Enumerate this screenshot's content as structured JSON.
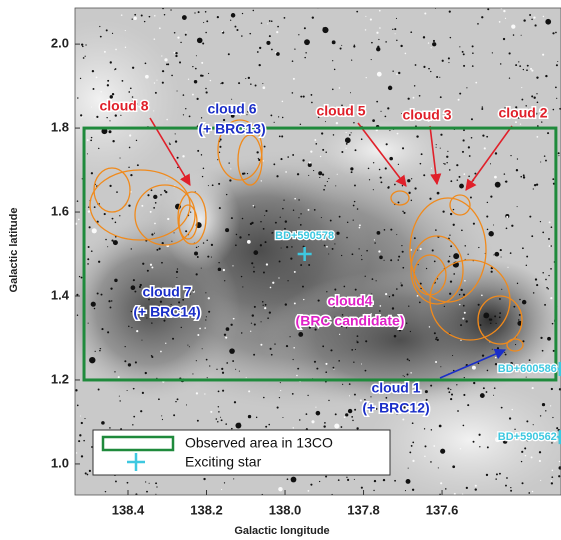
{
  "chart_data": {
    "type": "image",
    "xlabel": "Galactic longitude",
    "ylabel": "Galactic latitude",
    "xlim": [
      138.535,
      137.297
    ],
    "ylim": [
      0.926,
      2.086
    ],
    "xticks": [
      138.4,
      138.2,
      {
        "value": 138,
        "label": "138.0"
      },
      137.8,
      137.6
    ],
    "yticks": [
      {
        "value": 1,
        "label": "1.0"
      },
      1.2,
      1.4,
      1.6,
      1.8,
      {
        "value": 2,
        "label": "2.0"
      }
    ],
    "observed_area": {
      "name": "Observed area in 13CO",
      "color": "#1f8a3c",
      "x": [
        138.512,
        137.31
      ],
      "y": [
        1.2,
        1.8
      ]
    },
    "exciting_stars": {
      "name": "Exciting star",
      "color": "#3ec8e0",
      "labels": [
        "BD+590578",
        "BD+600586",
        "BD+590562"
      ],
      "x": [
        137.95,
        137.3,
        137.3
      ],
      "y": [
        1.5,
        1.226,
        1.064
      ]
    },
    "annotations": [
      {
        "lines": [
          "cloud 8"
        ],
        "color": "#e0202a"
      },
      {
        "lines": [
          "cloud 6",
          "(+ BRC13)"
        ],
        "color": "#1a2ec8"
      },
      {
        "lines": [
          "cloud 5"
        ],
        "color": "#e0202a"
      },
      {
        "lines": [
          "cloud 3"
        ],
        "color": "#e0202a"
      },
      {
        "lines": [
          "cloud 2"
        ],
        "color": "#e0202a"
      },
      {
        "lines": [
          "cloud 7",
          "(+ BRC14)"
        ],
        "color": "#1a2ec8"
      },
      {
        "lines": [
          "cloud4",
          "(BRC candidate)"
        ],
        "color": "#e020c8"
      },
      {
        "lines": [
          "cloud 1",
          "(+ BRC12)"
        ],
        "color": "#1a2ec8"
      }
    ]
  }
}
